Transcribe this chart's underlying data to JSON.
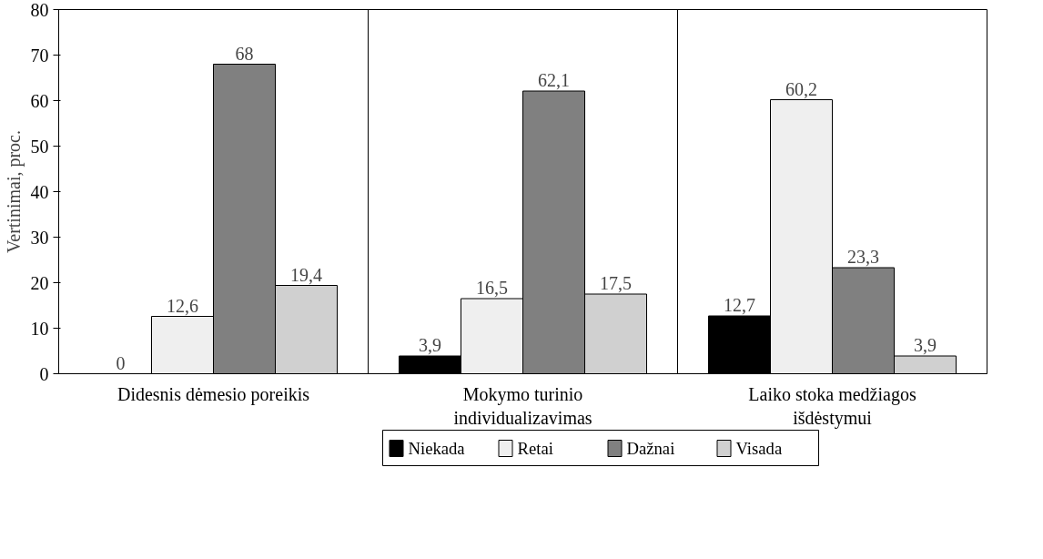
{
  "chart_data": {
    "type": "bar",
    "ylabel": "Vertinimai, proc.",
    "categories": [
      "Didesnis dėmesio poreikis",
      "Mokymo turinio\nindividualizavimas",
      "Laiko stoka medžiagos\nišdėstymui"
    ],
    "series": [
      {
        "name": "Niekada",
        "color": "#000000",
        "values": [
          0,
          3.9,
          12.7
        ],
        "value_labels": [
          "0",
          "3,9",
          "12,7"
        ]
      },
      {
        "name": "Retai",
        "color": "#efefef",
        "values": [
          12.6,
          16.5,
          60.2
        ],
        "value_labels": [
          "12,6",
          "16,5",
          "60,2"
        ]
      },
      {
        "name": "Dažnai",
        "color": "#808080",
        "values": [
          68,
          62.1,
          23.3
        ],
        "value_labels": [
          "68",
          "62,1",
          "23,3"
        ]
      },
      {
        "name": "Visada",
        "color": "#d0d0d0",
        "values": [
          19.4,
          17.5,
          3.9
        ],
        "value_labels": [
          "19,4",
          "17,5",
          "3,9"
        ]
      }
    ],
    "ylim": [
      0,
      80
    ],
    "yticks": [
      0,
      10,
      20,
      30,
      40,
      50,
      60,
      70,
      80
    ],
    "grid": "x",
    "legend": "bottom"
  }
}
